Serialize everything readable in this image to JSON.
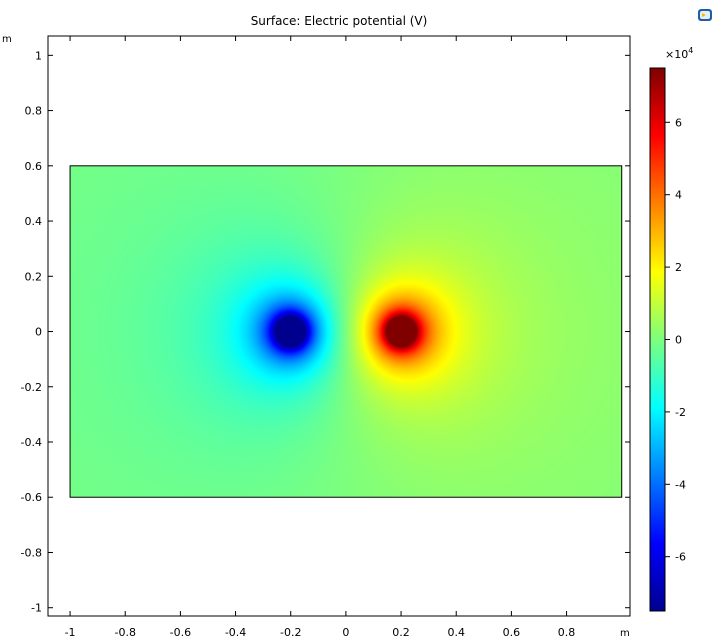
{
  "chart_data": {
    "type": "heatmap",
    "title": "Surface: Electric potential (V)",
    "x_unit": "m",
    "y_unit": "m",
    "xlim": [
      -1.08,
      1.03
    ],
    "ylim": [
      -1.03,
      1.07
    ],
    "xticks": [
      -1,
      -0.8,
      -0.6,
      -0.4,
      -0.2,
      0,
      0.2,
      0.4,
      0.6,
      0.8
    ],
    "xtick_labels": [
      "-1",
      "-0.8",
      "-0.6",
      "-0.4",
      "-0.2",
      "0",
      "0.2",
      "0.4",
      "0.6",
      "0.8"
    ],
    "yticks": [
      -1,
      -0.8,
      -0.6,
      -0.4,
      -0.2,
      0,
      0.2,
      0.4,
      0.6,
      0.8,
      1
    ],
    "ytick_labels": [
      "-1",
      "-0.8",
      "-0.6",
      "-0.4",
      "-0.2",
      "0",
      "0.2",
      "0.4",
      "0.6",
      "0.8",
      "1"
    ],
    "domain": {
      "x": [
        -1,
        1
      ],
      "y": [
        -0.6,
        0.6
      ]
    },
    "charges": [
      {
        "x": -0.2,
        "y": 0,
        "sign": -1
      },
      {
        "x": 0.2,
        "y": 0,
        "sign": 1
      }
    ],
    "color_range": [
      -75000,
      75000
    ],
    "colormap": "rainbow",
    "colorbar": {
      "exponent_label": "×10",
      "exponent": "4",
      "ticks": [
        6,
        4,
        2,
        0,
        -2,
        -4,
        -6
      ],
      "tick_labels": [
        "6",
        "4",
        "2",
        "0",
        "-2",
        "-4",
        "-6"
      ],
      "range": [
        -7.5,
        7.5
      ]
    },
    "grid": false
  },
  "colors": {
    "background": "#ffffff",
    "axis": "#000000",
    "logo_blue": "#1a5fa8"
  },
  "icons": {
    "logo": "app-logo-icon"
  }
}
